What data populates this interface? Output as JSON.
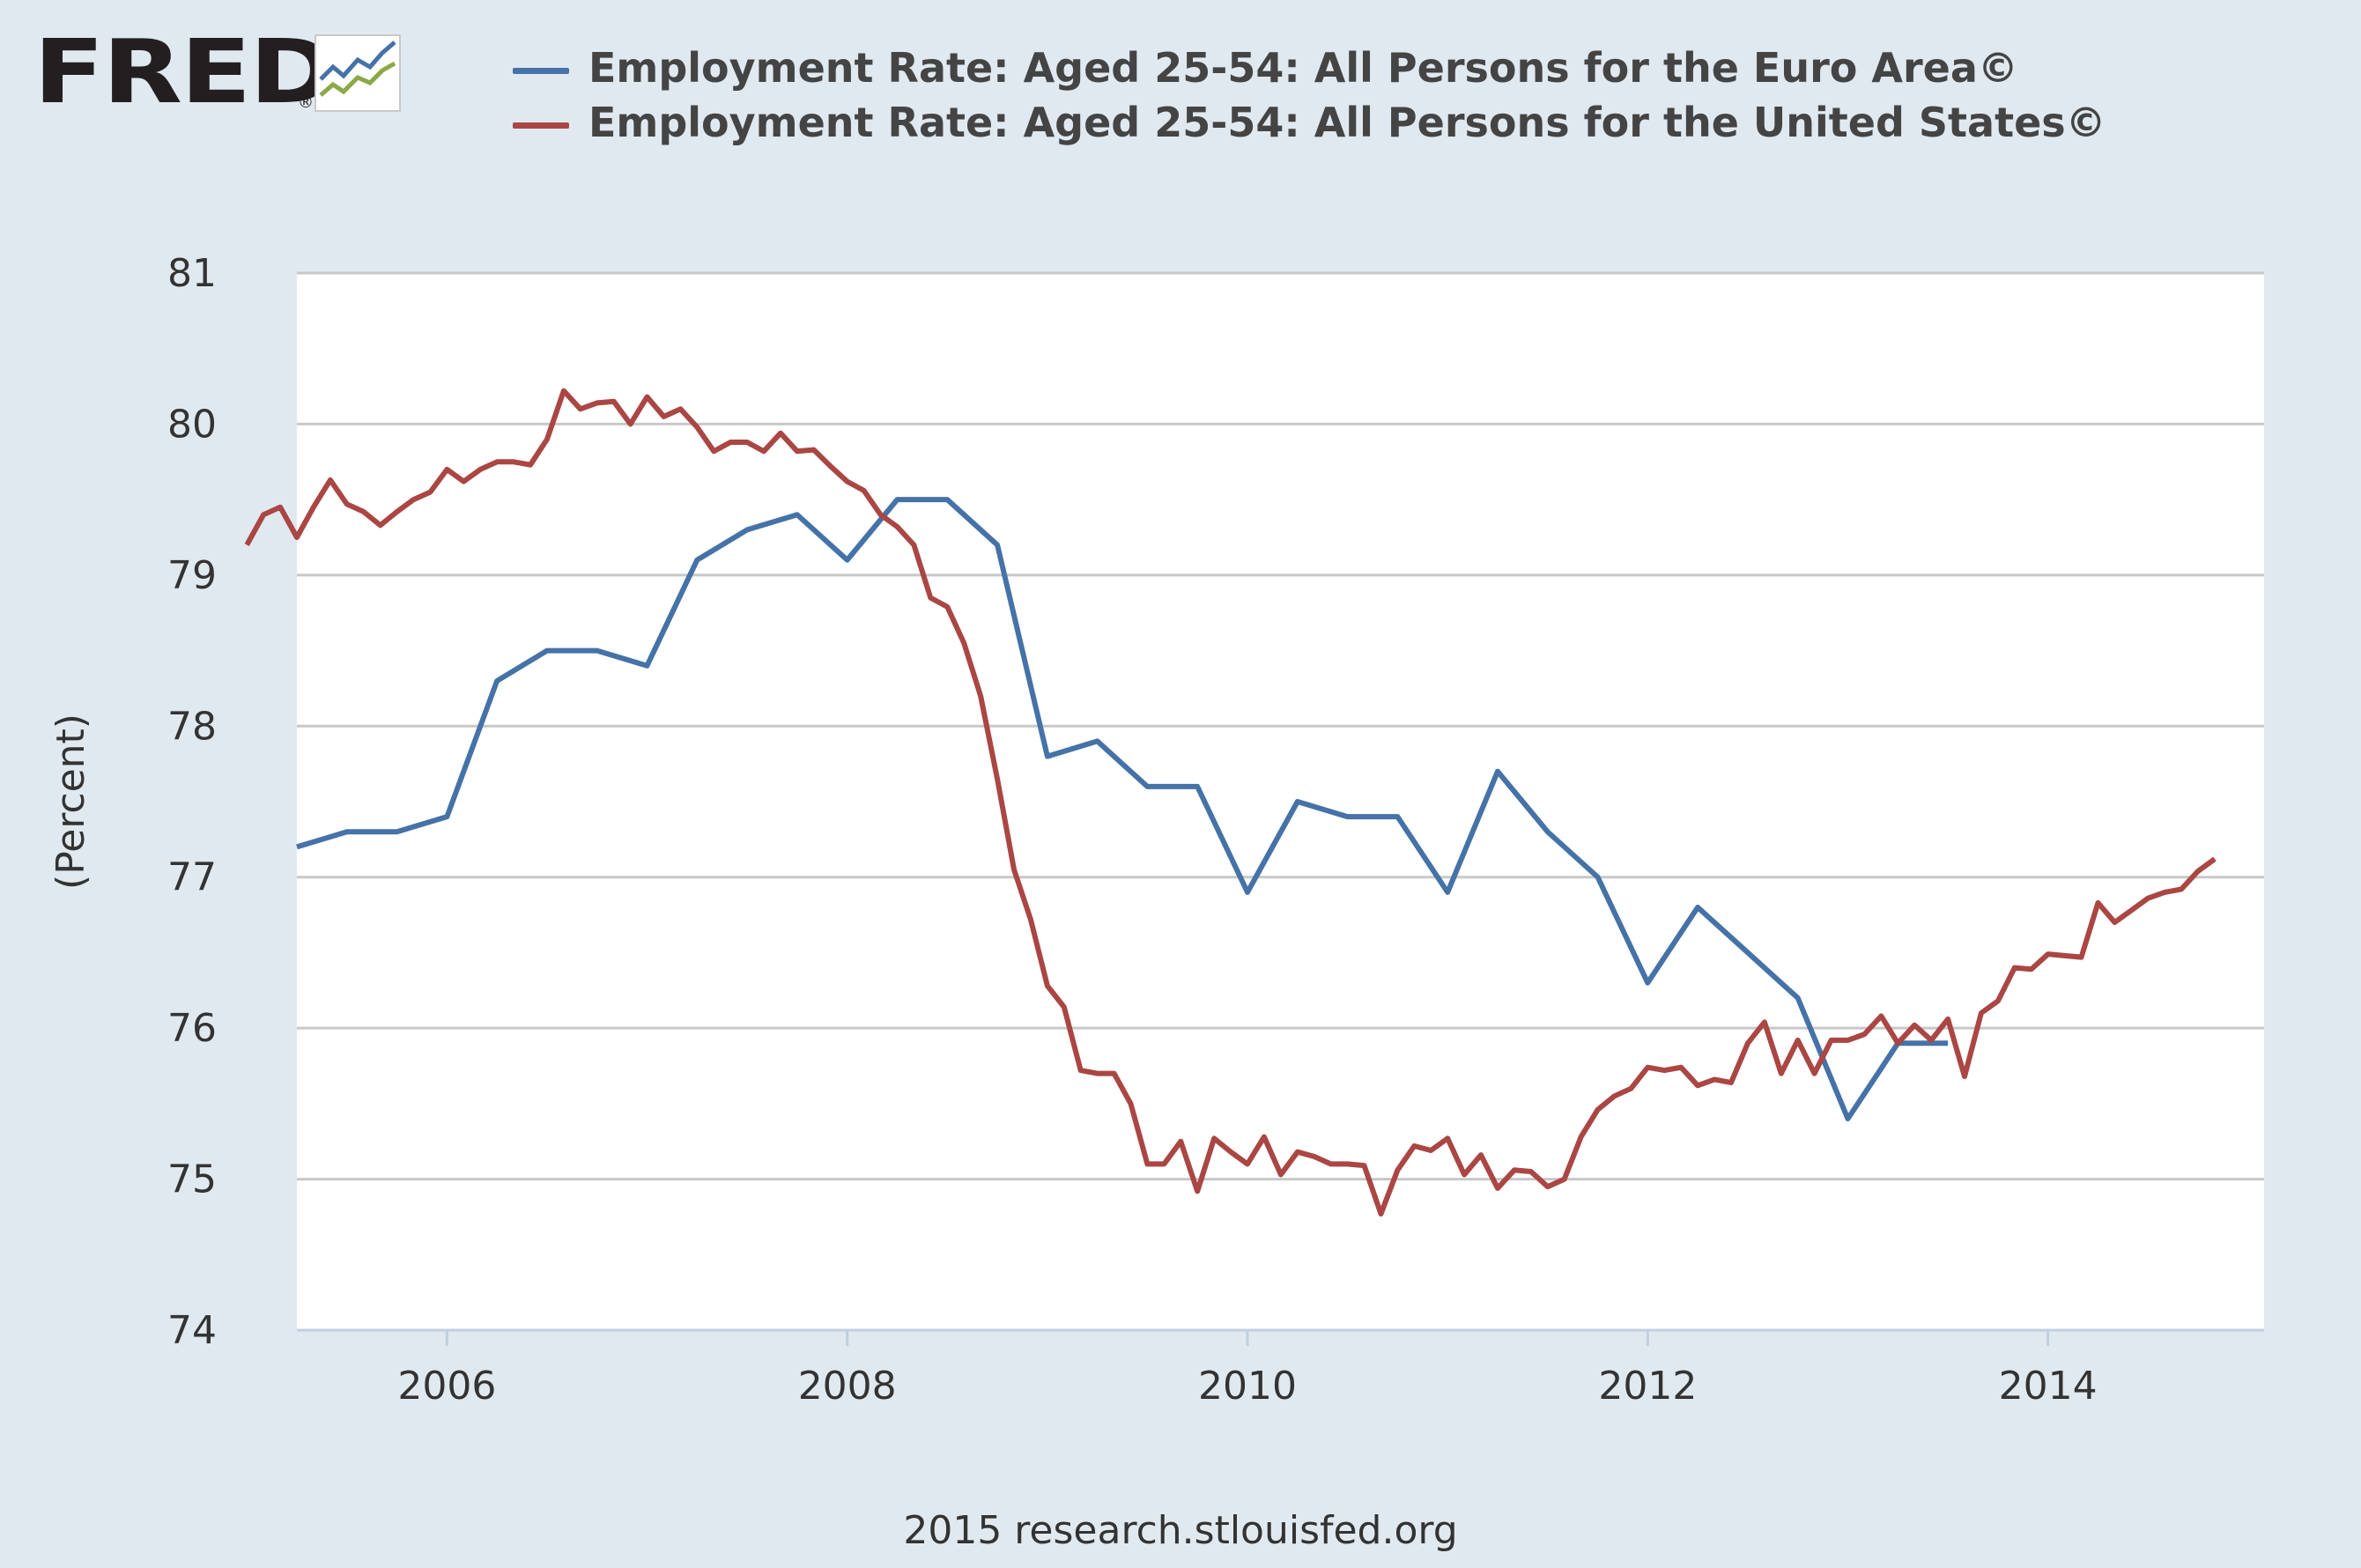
{
  "logo": {
    "text": "FRED"
  },
  "chart_data": {
    "type": "line",
    "title": "",
    "xlabel": "",
    "ylabel": "(Percent)",
    "xlim": [
      2005.25,
      2015.08
    ],
    "ylim": [
      74,
      81
    ],
    "yticks": [
      "74",
      "75",
      "76",
      "77",
      "78",
      "79",
      "80",
      "81"
    ],
    "xticks": [
      "2006",
      "2008",
      "2010",
      "2012",
      "2014"
    ],
    "grid": true,
    "legend_position": "top",
    "series": [
      {
        "name": "Employment Rate: Aged 25-54: All Persons for the Euro Area©",
        "color": "#4572a7",
        "x": [
          "2005-04",
          "2005-07",
          "2005-10",
          "2006-01",
          "2006-04",
          "2006-07",
          "2006-10",
          "2007-01",
          "2007-04",
          "2007-07",
          "2007-10",
          "2008-01",
          "2008-04",
          "2008-07",
          "2008-10",
          "2009-01",
          "2009-04",
          "2009-07",
          "2009-10",
          "2010-01",
          "2010-04",
          "2010-07",
          "2010-10",
          "2011-01",
          "2011-04",
          "2011-07",
          "2011-10",
          "2012-01",
          "2012-04",
          "2012-07",
          "2012-10",
          "2013-01",
          "2013-04",
          "2013-07"
        ],
        "values": [
          77.2,
          77.3,
          77.3,
          77.4,
          78.3,
          78.5,
          78.5,
          78.4,
          79.1,
          79.3,
          79.4,
          79.1,
          79.5,
          79.5,
          79.2,
          77.8,
          77.9,
          77.6,
          77.6,
          76.9,
          77.5,
          77.4,
          77.4,
          76.9,
          77.7,
          77.3,
          77.0,
          76.3,
          76.8,
          76.5,
          76.2,
          75.4,
          75.9,
          75.9
        ]
      },
      {
        "name": "Employment Rate: Aged 25-54: All Persons for the United States©",
        "color": "#aa4643",
        "x_start": "2005-01",
        "frequency": "monthly",
        "values": [
          79.2,
          79.4,
          79.45,
          79.25,
          79.45,
          79.63,
          79.47,
          79.42,
          79.33,
          79.42,
          79.5,
          79.55,
          79.7,
          79.62,
          79.7,
          79.75,
          79.75,
          79.73,
          79.9,
          80.22,
          80.1,
          80.14,
          80.15,
          80.0,
          80.18,
          80.05,
          80.1,
          79.98,
          79.82,
          79.88,
          79.88,
          79.82,
          79.94,
          79.82,
          79.83,
          79.72,
          79.62,
          79.56,
          79.4,
          79.32,
          79.2,
          78.85,
          78.79,
          78.55,
          78.2,
          77.65,
          77.05,
          76.72,
          76.28,
          76.14,
          75.72,
          75.7,
          75.7,
          75.5,
          75.1,
          75.1,
          75.25,
          74.92,
          75.27,
          75.18,
          75.1,
          75.28,
          75.03,
          75.18,
          75.15,
          75.1,
          75.1,
          75.09,
          74.77,
          75.06,
          75.22,
          75.19,
          75.27,
          75.03,
          75.16,
          74.94,
          75.06,
          75.05,
          74.95,
          75.0,
          75.28,
          75.46,
          75.55,
          75.6,
          75.74,
          75.72,
          75.74,
          75.62,
          75.66,
          75.64,
          75.9,
          76.04,
          75.7,
          75.92,
          75.7,
          75.92,
          75.92,
          75.96,
          76.08,
          75.9,
          76.02,
          75.92,
          76.06,
          75.68,
          76.1,
          76.18,
          76.4,
          76.39,
          76.49,
          76.48,
          76.47,
          76.83,
          76.7,
          76.78,
          76.86,
          76.9,
          76.92,
          77.04,
          77.12
        ]
      }
    ]
  },
  "footer": {
    "text": "2015 research.stlouisfed.org"
  }
}
